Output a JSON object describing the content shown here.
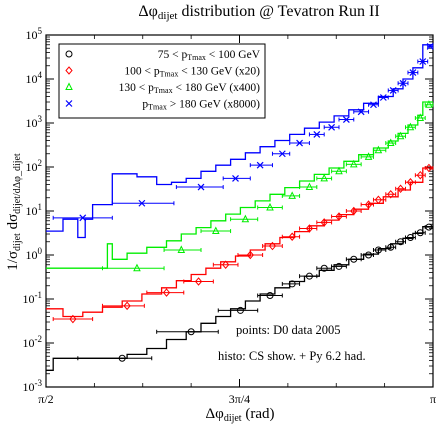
{
  "chart_data": {
    "type": "scatter",
    "title": "Δφ_dijet distribution @ Tevatron Run II",
    "xlabel": "Δφ_dijet (rad)",
    "ylabel": "1/σ_dijet dσ_dijet/dΔφ_dijet",
    "x_tick_labels": [
      "π/2",
      "3π/4",
      "π"
    ],
    "xlim": [
      1.5708,
      3.1416
    ],
    "ylim": [
      0.001,
      100000
    ],
    "y_scale": "log",
    "y_tick_labels": [
      "10^-3",
      "10^-2",
      "10^-1",
      "10^0",
      "10^1",
      "10^2",
      "10^3",
      "10^4",
      "10^5"
    ],
    "legend_position": "top-left",
    "annotations": [
      "points: D0 data 2005",
      "histo: CS show. + Py 6.2 had."
    ],
    "series": [
      {
        "name": "75 < p_Tmax < 100 GeV",
        "marker": "circle",
        "color": "#000000",
        "points": [
          {
            "x": 1.88,
            "y": 0.0045,
            "xerr": [
              1.7,
              2.0
            ]
          },
          {
            "x": 2.16,
            "y": 0.018,
            "xerr": [
              2.02,
              2.27
            ]
          },
          {
            "x": 2.36,
            "y": 0.055,
            "xerr": [
              2.27,
              2.43
            ]
          },
          {
            "x": 2.48,
            "y": 0.12,
            "xerr": [
              2.43,
              2.53
            ]
          },
          {
            "x": 2.57,
            "y": 0.22,
            "xerr": [
              2.53,
              2.6
            ]
          },
          {
            "x": 2.64,
            "y": 0.33,
            "xerr": [
              2.6,
              2.67
            ]
          },
          {
            "x": 2.7,
            "y": 0.5,
            "xerr": [
              2.67,
              2.73
            ]
          },
          {
            "x": 2.76,
            "y": 0.55,
            "xerr": [
              2.73,
              2.79
            ]
          },
          {
            "x": 2.82,
            "y": 0.8,
            "xerr": [
              2.79,
              2.85
            ]
          },
          {
            "x": 2.88,
            "y": 1.0,
            "xerr": [
              2.85,
              2.9
            ]
          },
          {
            "x": 2.92,
            "y": 1.3,
            "xerr": [
              2.9,
              2.95
            ]
          },
          {
            "x": 2.97,
            "y": 1.5,
            "xerr": [
              2.95,
              2.99
            ]
          },
          {
            "x": 3.01,
            "y": 2.0,
            "xerr": [
              2.99,
              3.03
            ]
          },
          {
            "x": 3.05,
            "y": 2.5,
            "xerr": [
              3.03,
              3.07
            ]
          },
          {
            "x": 3.09,
            "y": 3.2,
            "xerr": [
              3.07,
              3.11
            ]
          },
          {
            "x": 3.125,
            "y": 4.3,
            "xerr": [
              3.11,
              3.141
            ]
          }
        ],
        "histogram": {
          "edges": [
            1.5708,
            1.6,
            1.66,
            1.74,
            1.82,
            1.9,
            1.98,
            2.06,
            2.14,
            2.2,
            2.26,
            2.32,
            2.38,
            2.44,
            2.5,
            2.56,
            2.62,
            2.68,
            2.74,
            2.8,
            2.86,
            2.92,
            2.97,
            3.02,
            3.06,
            3.1,
            3.1416
          ],
          "values": [
            0.0024,
            0.0045,
            0.0045,
            0.0045,
            0.0045,
            0.0055,
            0.0075,
            0.012,
            0.018,
            0.028,
            0.04,
            0.06,
            0.09,
            0.13,
            0.18,
            0.25,
            0.33,
            0.45,
            0.6,
            0.8,
            1.05,
            1.4,
            1.8,
            2.4,
            3.1,
            4.4
          ]
        }
      },
      {
        "name": "100 < p_Tmax < 130 GeV (x20)",
        "marker": "diamond",
        "color": "#ff0000",
        "points": [
          {
            "x": 1.68,
            "y": 0.035,
            "xerr": [
              1.6,
              1.76
            ]
          },
          {
            "x": 1.9,
            "y": 0.07,
            "xerr": [
              1.8,
              1.97
            ]
          },
          {
            "x": 2.06,
            "y": 0.14,
            "xerr": [
              1.98,
              2.13
            ]
          },
          {
            "x": 2.19,
            "y": 0.25,
            "xerr": [
              2.13,
              2.25
            ]
          },
          {
            "x": 2.3,
            "y": 0.6,
            "xerr": [
              2.25,
              2.35
            ]
          },
          {
            "x": 2.4,
            "y": 1.0,
            "xerr": [
              2.35,
              2.45
            ]
          },
          {
            "x": 2.49,
            "y": 1.6,
            "xerr": [
              2.45,
              2.53
            ]
          },
          {
            "x": 2.57,
            "y": 2.6,
            "xerr": [
              2.53,
              2.6
            ]
          },
          {
            "x": 2.64,
            "y": 4.0,
            "xerr": [
              2.6,
              2.67
            ]
          },
          {
            "x": 2.7,
            "y": 5.5,
            "xerr": [
              2.67,
              2.73
            ]
          },
          {
            "x": 2.76,
            "y": 7.5,
            "xerr": [
              2.73,
              2.79
            ]
          },
          {
            "x": 2.82,
            "y": 10,
            "xerr": [
              2.79,
              2.85
            ]
          },
          {
            "x": 2.88,
            "y": 14,
            "xerr": [
              2.85,
              2.9
            ]
          },
          {
            "x": 2.92,
            "y": 18,
            "xerr": [
              2.9,
              2.95
            ]
          },
          {
            "x": 2.97,
            "y": 24,
            "xerr": [
              2.95,
              2.99
            ]
          },
          {
            "x": 3.01,
            "y": 32,
            "xerr": [
              2.99,
              3.03
            ]
          },
          {
            "x": 3.05,
            "y": 45,
            "xerr": [
              3.03,
              3.07
            ]
          },
          {
            "x": 3.09,
            "y": 65,
            "xerr": [
              3.07,
              3.11
            ]
          },
          {
            "x": 3.125,
            "y": 95,
            "xerr": [
              3.11,
              3.141
            ]
          }
        ],
        "histogram": {
          "edges": [
            1.5708,
            1.64,
            1.72,
            1.8,
            1.88,
            1.96,
            2.04,
            2.1,
            2.16,
            2.22,
            2.28,
            2.34,
            2.4,
            2.46,
            2.52,
            2.58,
            2.64,
            2.7,
            2.76,
            2.82,
            2.88,
            2.94,
            3.0,
            3.05,
            3.1,
            3.1416
          ],
          "values": [
            0.06,
            0.04,
            0.05,
            0.065,
            0.09,
            0.13,
            0.18,
            0.26,
            0.36,
            0.5,
            0.7,
            0.95,
            1.3,
            1.8,
            2.5,
            3.4,
            4.6,
            6.2,
            8.3,
            11,
            15,
            21,
            30,
            45,
            95
          ]
        }
      },
      {
        "name": "130 < p_Tmax < 180 GeV (x400)",
        "marker": "triangle",
        "color": "#00ee00",
        "points": [
          {
            "x": 1.94,
            "y": 0.5,
            "xerr": [
              1.8,
              2.05
            ]
          },
          {
            "x": 2.12,
            "y": 1.3,
            "xerr": [
              2.05,
              2.2
            ]
          },
          {
            "x": 2.26,
            "y": 3.5,
            "xerr": [
              2.2,
              2.32
            ]
          },
          {
            "x": 2.38,
            "y": 6.5,
            "xerr": [
              2.32,
              2.43
            ]
          },
          {
            "x": 2.48,
            "y": 12,
            "xerr": [
              2.43,
              2.53
            ]
          },
          {
            "x": 2.57,
            "y": 22,
            "xerr": [
              2.53,
              2.6
            ]
          },
          {
            "x": 2.64,
            "y": 35,
            "xerr": [
              2.6,
              2.67
            ]
          },
          {
            "x": 2.7,
            "y": 55,
            "xerr": [
              2.67,
              2.73
            ]
          },
          {
            "x": 2.76,
            "y": 80,
            "xerr": [
              2.73,
              2.79
            ]
          },
          {
            "x": 2.82,
            "y": 115,
            "xerr": [
              2.79,
              2.85
            ]
          },
          {
            "x": 2.88,
            "y": 170,
            "xerr": [
              2.85,
              2.9
            ]
          },
          {
            "x": 2.92,
            "y": 240,
            "xerr": [
              2.9,
              2.95
            ]
          },
          {
            "x": 2.97,
            "y": 350,
            "xerr": [
              2.95,
              2.99
            ]
          },
          {
            "x": 3.01,
            "y": 500,
            "xerr": [
              2.99,
              3.03
            ]
          },
          {
            "x": 3.05,
            "y": 800,
            "xerr": [
              3.03,
              3.07
            ]
          },
          {
            "x": 3.09,
            "y": 1300,
            "xerr": [
              3.07,
              3.11
            ]
          },
          {
            "x": 3.125,
            "y": 2600,
            "xerr": [
              3.11,
              3.141
            ]
          }
        ],
        "histogram": {
          "edges": [
            1.5708,
            1.82,
            1.84,
            1.9,
            1.98,
            2.06,
            2.12,
            2.18,
            2.24,
            2.3,
            2.36,
            2.42,
            2.48,
            2.54,
            2.6,
            2.66,
            2.72,
            2.78,
            2.84,
            2.9,
            2.96,
            3.0,
            3.04,
            3.08,
            3.1,
            3.1416
          ],
          "values": [
            0.5,
            1.8,
            0.8,
            1.1,
            1.5,
            2.1,
            3.0,
            4.2,
            6.0,
            8.5,
            12,
            17,
            24,
            34,
            48,
            68,
            95,
            135,
            190,
            270,
            390,
            580,
            900,
            1500,
            3000
          ]
        }
      },
      {
        "name": "p_Tmax > 180 GeV (x8000)",
        "marker": "x",
        "color": "#0000ff",
        "points": [
          {
            "x": 1.72,
            "y": 7,
            "xerr": [
              1.6,
              1.84
            ]
          },
          {
            "x": 1.96,
            "y": 15,
            "xerr": [
              1.84,
              2.09
            ]
          },
          {
            "x": 2.2,
            "y": 35,
            "xerr": [
              2.1,
              2.29
            ]
          },
          {
            "x": 2.34,
            "y": 55,
            "xerr": [
              2.29,
              2.4
            ]
          },
          {
            "x": 2.44,
            "y": 110,
            "xerr": [
              2.4,
              2.49
            ]
          },
          {
            "x": 2.53,
            "y": 200,
            "xerr": [
              2.49,
              2.56
            ]
          },
          {
            "x": 2.6,
            "y": 350,
            "xerr": [
              2.56,
              2.64
            ]
          },
          {
            "x": 2.67,
            "y": 550,
            "xerr": [
              2.64,
              2.7
            ]
          },
          {
            "x": 2.73,
            "y": 800,
            "xerr": [
              2.7,
              2.76
            ]
          },
          {
            "x": 2.79,
            "y": 1200,
            "xerr": [
              2.76,
              2.82
            ]
          },
          {
            "x": 2.85,
            "y": 1800,
            "xerr": [
              2.82,
              2.88
            ]
          },
          {
            "x": 2.9,
            "y": 2600,
            "xerr": [
              2.88,
              2.92
            ]
          },
          {
            "x": 2.94,
            "y": 3800,
            "xerr": [
              2.92,
              2.96
            ]
          },
          {
            "x": 2.98,
            "y": 5500,
            "xerr": [
              2.96,
              3.0
            ]
          },
          {
            "x": 3.02,
            "y": 8000,
            "xerr": [
              3.0,
              3.04
            ]
          },
          {
            "x": 3.06,
            "y": 14000,
            "xerr": [
              3.04,
              3.08
            ]
          },
          {
            "x": 3.1,
            "y": 25000,
            "xerr": [
              3.08,
              3.12
            ]
          },
          {
            "x": 3.13,
            "y": 55000,
            "xerr": [
              3.12,
              3.141
            ]
          }
        ],
        "histogram": {
          "edges": [
            1.5708,
            1.64,
            1.7,
            1.73,
            1.76,
            1.84,
            1.94,
            2.02,
            2.08,
            2.14,
            2.2,
            2.26,
            2.32,
            2.38,
            2.44,
            2.5,
            2.56,
            2.62,
            2.68,
            2.74,
            2.8,
            2.86,
            2.92,
            2.98,
            3.02,
            3.06,
            3.1,
            3.1416
          ],
          "values": [
            3.5,
            6.5,
            2.5,
            6.5,
            14,
            70,
            60,
            40,
            45,
            55,
            80,
            110,
            150,
            210,
            290,
            400,
            550,
            760,
            1050,
            1450,
            2000,
            2800,
            4000,
            6000,
            10000,
            18000,
            60000
          ]
        }
      }
    ]
  }
}
